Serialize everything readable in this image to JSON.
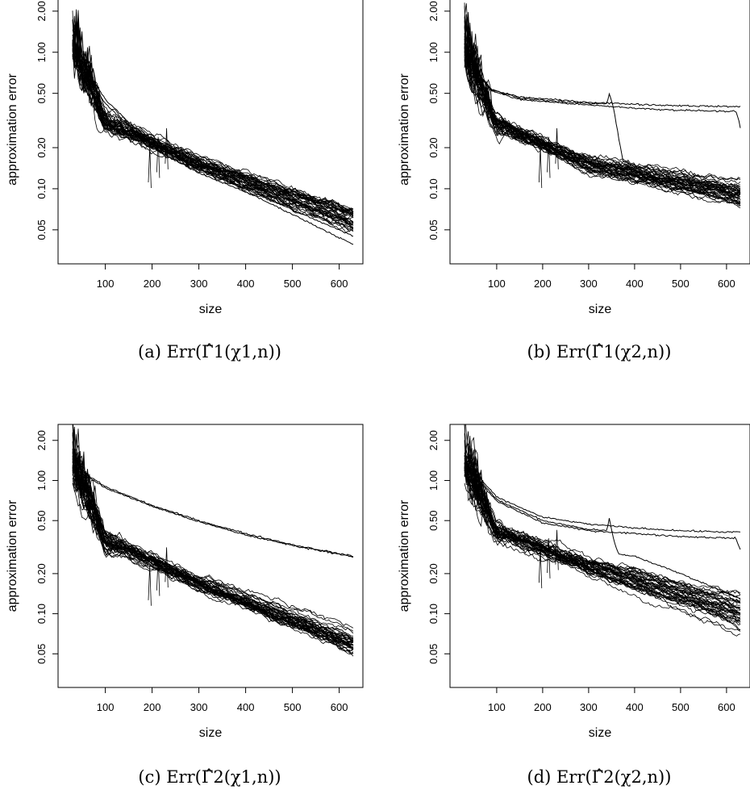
{
  "chart_data": [
    {
      "type": "line",
      "caption": "(a) Err(Γ̂1(χ1,n))",
      "xlabel": "size",
      "ylabel": "approximation error",
      "yscale": "log",
      "xlim": [
        30,
        630
      ],
      "ylim": [
        0.038,
        2.05
      ],
      "xticks": [
        100,
        200,
        300,
        400,
        500,
        600
      ],
      "yticks": [
        "0.05",
        "0.10",
        "0.20",
        "0.50",
        "1.00",
        "2.00"
      ],
      "series_count": 40,
      "bundle": {
        "start": 1.05,
        "mid_x": 300,
        "mid": 0.15,
        "end": 0.058,
        "spread_end": 0.012
      },
      "outliers": [
        {
          "x": [
            30,
            100,
            200,
            300,
            400,
            500,
            630
          ],
          "y": [
            1.0,
            0.42,
            0.2,
            0.13,
            0.095,
            0.065,
            0.039
          ]
        },
        {
          "x": [
            30,
            100,
            200,
            300,
            400,
            500,
            630
          ],
          "y": [
            1.1,
            0.45,
            0.21,
            0.14,
            0.1,
            0.07,
            0.045
          ]
        }
      ]
    },
    {
      "type": "line",
      "caption": "(b) Err(Γ̂1(χ2,n))",
      "xlabel": "size",
      "ylabel": "approximation error",
      "yscale": "log",
      "xlim": [
        30,
        630
      ],
      "ylim": [
        0.038,
        2.05
      ],
      "xticks": [
        100,
        200,
        300,
        400,
        500,
        600
      ],
      "yticks": [
        "0.05",
        "0.10",
        "0.20",
        "0.50",
        "1.00",
        "2.00"
      ],
      "series_count": 40,
      "bundle": {
        "start": 1.0,
        "mid_x": 300,
        "mid": 0.15,
        "end": 0.09,
        "spread_end": 0.018
      },
      "outliers": [
        {
          "x": [
            30,
            60,
            90,
            150,
            300,
            450,
            600,
            620,
            630
          ],
          "y": [
            1.2,
            0.7,
            0.53,
            0.47,
            0.43,
            0.41,
            0.4,
            0.4,
            0.4
          ]
        },
        {
          "x": [
            30,
            60,
            90,
            150,
            300,
            450,
            600,
            620,
            625,
            630
          ],
          "y": [
            1.1,
            0.68,
            0.52,
            0.45,
            0.41,
            0.38,
            0.37,
            0.37,
            0.33,
            0.28
          ]
        },
        {
          "x": [
            30,
            60,
            90,
            150,
            300,
            340,
            345,
            355,
            365,
            375,
            450,
            630
          ],
          "y": [
            1.15,
            0.69,
            0.53,
            0.46,
            0.42,
            0.42,
            0.5,
            0.38,
            0.24,
            0.16,
            0.12,
            0.09
          ]
        }
      ]
    },
    {
      "type": "line",
      "caption": "(c) Err(Γ̂2(χ1,n))",
      "xlabel": "size",
      "ylabel": "approximation error",
      "yscale": "log",
      "xlim": [
        30,
        630
      ],
      "ylim": [
        0.038,
        2.05
      ],
      "xticks": [
        100,
        200,
        300,
        400,
        500,
        600
      ],
      "yticks": [
        "0.05",
        "0.10",
        "0.20",
        "0.50",
        "1.00",
        "2.00"
      ],
      "series_count": 40,
      "bundle": {
        "start": 1.3,
        "mid_x": 300,
        "mid": 0.17,
        "end": 0.06,
        "spread_end": 0.012
      },
      "outliers": [
        {
          "x": [
            30,
            100,
            200,
            300,
            400,
            500,
            630
          ],
          "y": [
            1.3,
            0.9,
            0.65,
            0.5,
            0.4,
            0.33,
            0.27
          ]
        },
        {
          "x": [
            30,
            100,
            200,
            300,
            400,
            500,
            630
          ],
          "y": [
            1.25,
            0.88,
            0.64,
            0.49,
            0.39,
            0.325,
            0.268
          ]
        }
      ]
    },
    {
      "type": "line",
      "caption": "(d) Err(Γ̂2(χ2,n))",
      "xlabel": "size",
      "ylabel": "approximation error",
      "yscale": "log",
      "xlim": [
        30,
        630
      ],
      "ylim": [
        0.038,
        2.05
      ],
      "xticks": [
        100,
        200,
        300,
        400,
        500,
        600
      ],
      "yticks": [
        "0.05",
        "0.10",
        "0.20",
        "0.50",
        "1.00",
        "2.00"
      ],
      "series_count": 40,
      "bundle": {
        "start": 1.3,
        "mid_x": 300,
        "mid": 0.23,
        "end": 0.1,
        "spread_end": 0.03
      },
      "outliers": [
        {
          "x": [
            30,
            100,
            200,
            300,
            400,
            500,
            600,
            630
          ],
          "y": [
            1.4,
            0.75,
            0.53,
            0.47,
            0.44,
            0.42,
            0.41,
            0.41
          ]
        },
        {
          "x": [
            30,
            100,
            200,
            300,
            400,
            500,
            600,
            620,
            630
          ],
          "y": [
            1.3,
            0.7,
            0.48,
            0.42,
            0.4,
            0.38,
            0.37,
            0.37,
            0.3
          ]
        },
        {
          "x": [
            30,
            100,
            200,
            300,
            340,
            345,
            355,
            365,
            400,
            500,
            630
          ],
          "y": [
            1.35,
            0.72,
            0.5,
            0.43,
            0.42,
            0.52,
            0.35,
            0.28,
            0.27,
            0.2,
            0.13
          ]
        }
      ]
    }
  ]
}
